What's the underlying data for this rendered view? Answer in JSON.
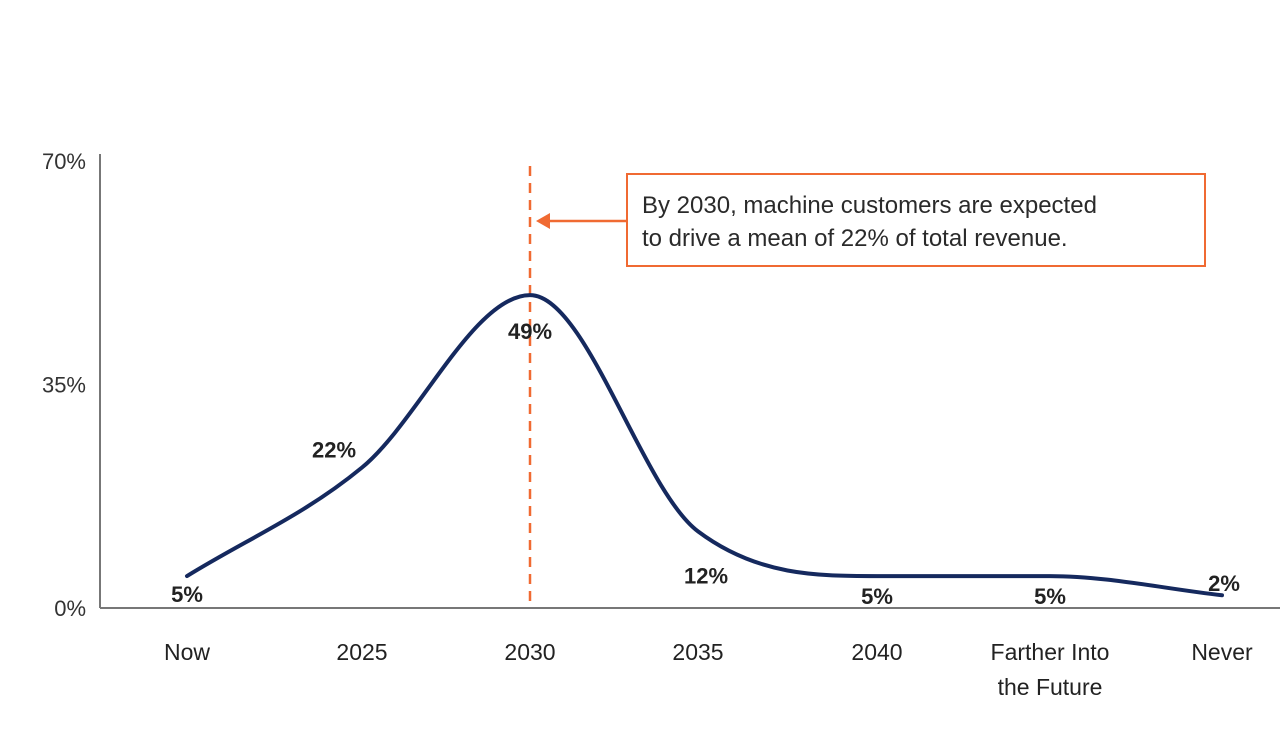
{
  "chart_data": {
    "type": "line",
    "title": "",
    "xlabel": "",
    "ylabel": "",
    "ylim": [
      0,
      70
    ],
    "y_ticks": [
      "0%",
      "35%",
      "70%"
    ],
    "y_tick_values": [
      0,
      35,
      70
    ],
    "categories": [
      [
        "Now"
      ],
      [
        "2025"
      ],
      [
        "2030"
      ],
      [
        "2035"
      ],
      [
        "2040"
      ],
      [
        "Farther Into",
        "the Future"
      ],
      [
        "Never"
      ]
    ],
    "values": [
      5,
      22,
      49,
      12,
      5,
      5,
      2
    ],
    "value_labels": [
      "5%",
      "22%",
      "49%",
      "12%",
      "5%",
      "5%",
      "2%"
    ],
    "series_color": "#15295e",
    "axis_color": "#777777",
    "highlight": {
      "category": "2030",
      "color": "#f06a32",
      "annotation": [
        "By 2030, machine customers are expected",
        "to drive a mean of 22% of total revenue."
      ]
    }
  }
}
